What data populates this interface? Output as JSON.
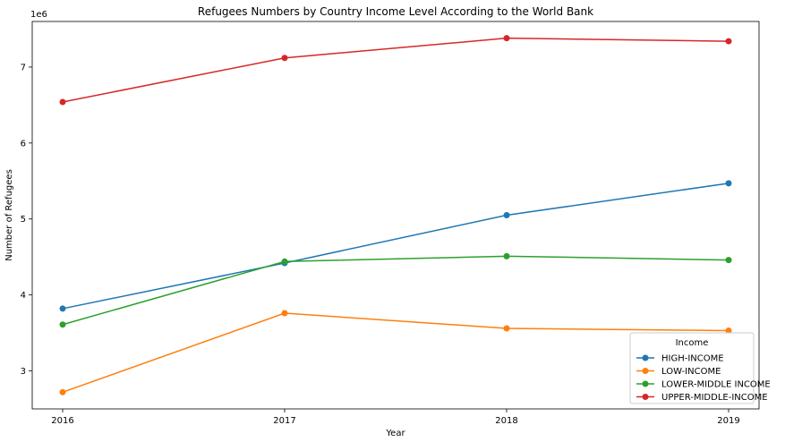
{
  "chart_data": {
    "type": "line",
    "title": "Refugees Numbers by Country Income Level According to the World Bank",
    "xlabel": "Year",
    "ylabel": "Number of Refugees",
    "y_offset_label": "1e6",
    "x": [
      "2016",
      "2017",
      "2018",
      "2019"
    ],
    "ylim": [
      2.5,
      7.6
    ],
    "yticks": [
      3,
      4,
      5,
      6,
      7
    ],
    "ytick_labels": [
      "3",
      "4",
      "5",
      "6",
      "7"
    ],
    "grid": false,
    "legend": {
      "title": "Income",
      "placement": "bottom-right"
    },
    "series": [
      {
        "name": "HIGH-INCOME",
        "color": "#1f77b4",
        "values": [
          3.82,
          4.42,
          5.05,
          5.47
        ]
      },
      {
        "name": "LOW-INCOME",
        "color": "#ff7f0e",
        "values": [
          2.72,
          3.76,
          3.56,
          3.53
        ]
      },
      {
        "name": "LOWER-MIDDLE INCOME",
        "color": "#2ca02c",
        "values": [
          3.61,
          4.44,
          4.51,
          4.46
        ]
      },
      {
        "name": "UPPER-MIDDLE-INCOME",
        "color": "#d62728",
        "values": [
          6.54,
          7.12,
          7.38,
          7.34
        ]
      }
    ]
  }
}
